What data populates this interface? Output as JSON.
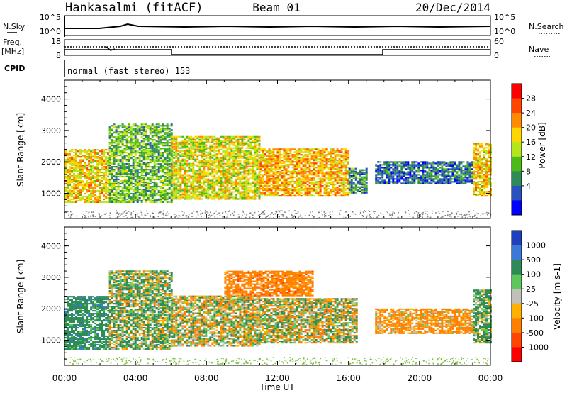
{
  "header": {
    "station": "Hankasalmi (fitACF)",
    "beam": "Beam 01",
    "date": "20/Dec/2014"
  },
  "params": {
    "nsky_label": "N.Sky",
    "nsearch_label": "N.Search",
    "nsky_tick_hi": "10^5",
    "nsky_tick_lo": "10^0",
    "freq_label": "Freq.",
    "freq_unit": "[MHz]",
    "freq_tick_hi": "18",
    "freq_tick_lo": "8",
    "nave_label": "Nave",
    "nave_tick_hi": "60",
    "nave_tick_lo": "0",
    "cpid_label": "CPID",
    "cpid_text": "normal (fast stereo) 153"
  },
  "chart_data": [
    {
      "type": "heatmap",
      "name": "power-panel",
      "title": "",
      "xlabel": "",
      "ylabel": "Slant Range [km]",
      "x_ticks": [
        "00:00",
        "04:00",
        "08:00",
        "12:00",
        "16:00",
        "20:00",
        "00:00"
      ],
      "x_hours": [
        0,
        24
      ],
      "y_ticks": [
        1000,
        2000,
        3000,
        4000
      ],
      "ylim": [
        200,
        4600
      ],
      "colorbar": {
        "label": "Power [dB]",
        "ticks": [
          "4",
          "8",
          "12",
          "16",
          "20",
          "24",
          "28"
        ],
        "colors": [
          "#0000ff",
          "#2a52be",
          "#2e8b57",
          "#4cbb17",
          "#b5e61d",
          "#ffd700",
          "#ff8c00",
          "#ff4500",
          "#ff0000"
        ]
      },
      "regions": [
        {
          "t0": 0.0,
          "t1": 2.5,
          "r0": 700,
          "r1": 2400,
          "value": 22
        },
        {
          "t0": 2.5,
          "t1": 6.0,
          "r0": 700,
          "r1": 3200,
          "value": 14
        },
        {
          "t0": 6.0,
          "t1": 11.0,
          "r0": 800,
          "r1": 2800,
          "value": 20
        },
        {
          "t0": 11.0,
          "t1": 16.0,
          "r0": 900,
          "r1": 2400,
          "value": 24
        },
        {
          "t0": 16.0,
          "t1": 17.0,
          "r0": 1000,
          "r1": 1800,
          "value": 10
        },
        {
          "t0": 17.5,
          "t1": 23.0,
          "r0": 1300,
          "r1": 2000,
          "value": 8
        },
        {
          "t0": 23.0,
          "t1": 24.0,
          "r0": 900,
          "r1": 2600,
          "value": 22
        }
      ]
    },
    {
      "type": "heatmap",
      "name": "velocity-panel",
      "title": "",
      "xlabel": "Time UT",
      "ylabel": "Slant Range [km]",
      "x_ticks": [
        "00:00",
        "04:00",
        "08:00",
        "12:00",
        "16:00",
        "20:00",
        "00:00"
      ],
      "x_hours": [
        0,
        24
      ],
      "y_ticks": [
        1000,
        2000,
        3000,
        4000
      ],
      "ylim": [
        200,
        4600
      ],
      "colorbar": {
        "label": "Velocity [m s-1]",
        "ticks": [
          "1000",
          "500",
          "100",
          "25",
          "-25",
          "-100",
          "-500",
          "-1000"
        ],
        "colors": [
          "#1f3fbf",
          "#3c78d8",
          "#2e8b57",
          "#5cc85c",
          "#c0c0b8",
          "#ffb000",
          "#ff7f00",
          "#ff4500",
          "#ff0000"
        ]
      },
      "regions": [
        {
          "t0": 0.0,
          "t1": 2.5,
          "r0": 700,
          "r1": 2400,
          "value": 300
        },
        {
          "t0": 2.5,
          "t1": 6.0,
          "r0": 700,
          "r1": 3200,
          "value": 80
        },
        {
          "t0": 6.0,
          "t1": 11.0,
          "r0": 800,
          "r1": 2400,
          "value": 0
        },
        {
          "t0": 11.0,
          "t1": 16.5,
          "r0": 900,
          "r1": 2300,
          "value": 0
        },
        {
          "t0": 9.0,
          "t1": 14.0,
          "r0": 2400,
          "r1": 3200,
          "value": -300
        },
        {
          "t0": 17.5,
          "t1": 23.0,
          "r0": 1200,
          "r1": 2000,
          "value": -200
        },
        {
          "t0": 23.0,
          "t1": 24.0,
          "r0": 900,
          "r1": 2600,
          "value": 150
        }
      ]
    }
  ]
}
